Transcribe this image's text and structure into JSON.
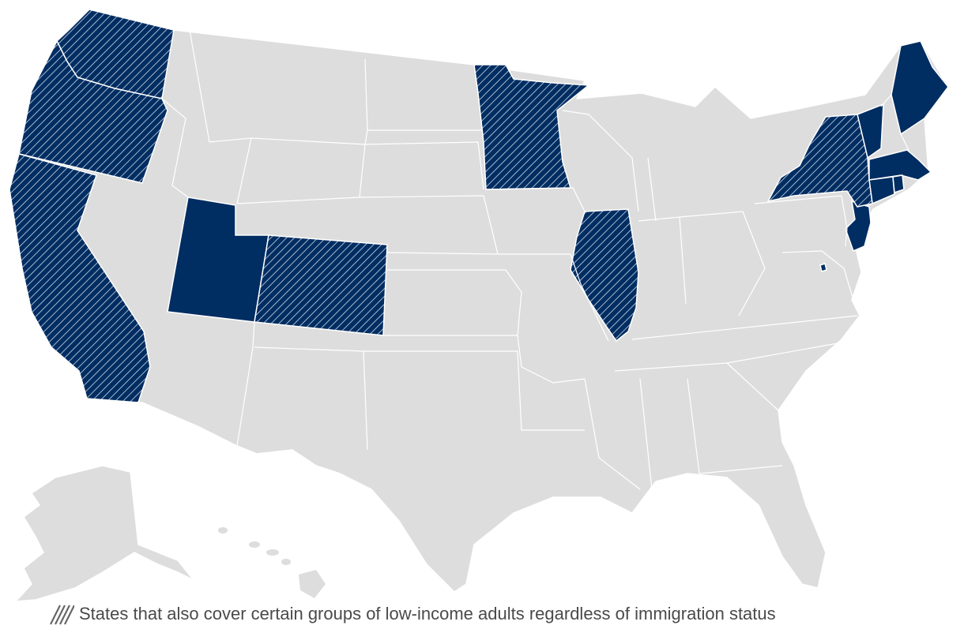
{
  "map": {
    "colors": {
      "background": "#ffffff",
      "default_fill": "#dddddd",
      "covered_fill": "#002d62",
      "hatch_stroke": "#a8b6cc",
      "border": "#ffffff",
      "legend_text": "#4a4a4a"
    },
    "states_covered": [
      "Maine",
      "Vermont",
      "Massachusetts",
      "Connecticut",
      "Rhode Island",
      "New Jersey",
      "Utah",
      "District of Columbia"
    ],
    "states_covered_with_adult_coverage": [
      "Washington",
      "Oregon",
      "California",
      "Colorado",
      "Minnesota",
      "Illinois",
      "New York"
    ],
    "states_not_covered": [
      "Idaho",
      "Montana",
      "Wyoming",
      "North Dakota",
      "South Dakota",
      "Nebraska",
      "Kansas",
      "Nevada",
      "Arizona",
      "New Mexico",
      "Texas",
      "Oklahoma",
      "Iowa",
      "Missouri",
      "Arkansas",
      "Louisiana",
      "Wisconsin",
      "Michigan",
      "Indiana",
      "Ohio",
      "Kentucky",
      "Tennessee",
      "Mississippi",
      "Alabama",
      "Georgia",
      "Florida",
      "South Carolina",
      "North Carolina",
      "Virginia",
      "West Virginia",
      "Maryland",
      "Delaware",
      "Pennsylvania",
      "New Hampshire",
      "Alaska",
      "Hawaii"
    ]
  },
  "legend": {
    "icon": "hatch-pattern-icon",
    "label": "States that also cover certain groups of low-income adults regardless of immigration status"
  }
}
